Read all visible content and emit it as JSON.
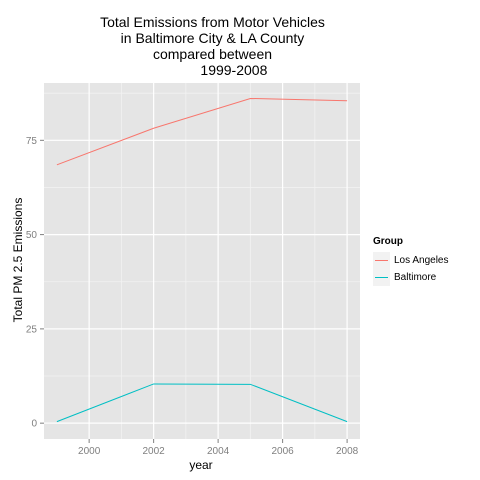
{
  "chart_data": {
    "type": "line",
    "title_lines": [
      "Total Emissions from Motor Vehicles",
      "in Baltimore City & LA County",
      "compared between",
      "           1999-2008"
    ],
    "xlabel": "year",
    "ylabel": "Total PM 2.5 Emissions",
    "x": [
      1999,
      2002,
      2005,
      2008
    ],
    "xlim": [
      1998.6,
      2008.4
    ],
    "ylim": [
      -4.2,
      90.2
    ],
    "x_ticks": [
      2000,
      2002,
      2004,
      2006,
      2008
    ],
    "y_ticks": [
      0,
      25,
      50,
      75
    ],
    "grid": true,
    "legend": {
      "title": "Group",
      "position": "right"
    },
    "series": [
      {
        "name": "Los Angeles",
        "color": "#F8766D",
        "values": [
          68.5,
          78.2,
          86.1,
          85.5
        ]
      },
      {
        "name": "Baltimore",
        "color": "#00BFC4",
        "values": [
          0.4,
          10.4,
          10.3,
          0.4
        ]
      }
    ]
  }
}
